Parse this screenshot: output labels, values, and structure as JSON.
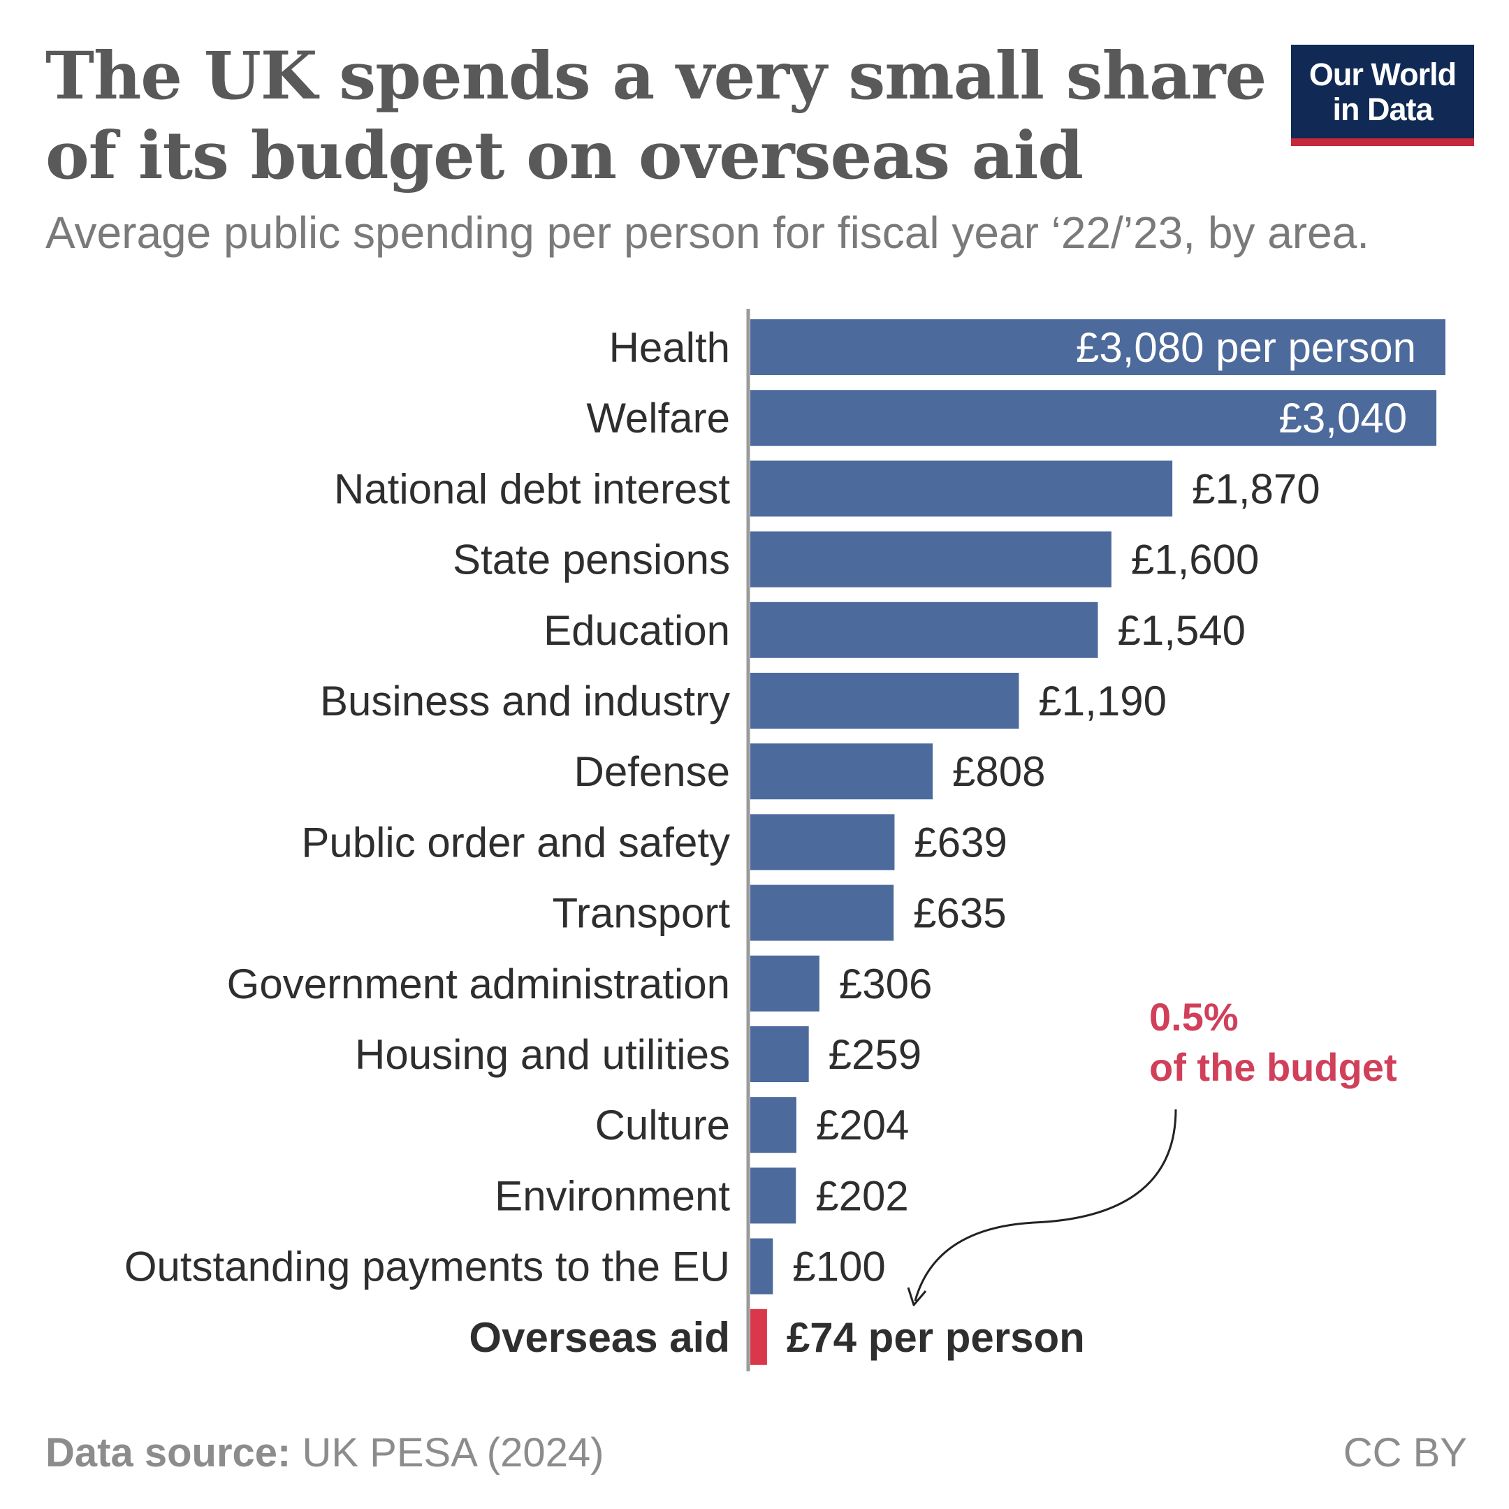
{
  "header": {
    "title_line1": "The UK spends a very small share",
    "title_line2": "of its budget on overseas aid",
    "subtitle": "Average public spending per person for fiscal year ‘22/’23, by area."
  },
  "logo": {
    "line1": "Our World",
    "line2": "in Data",
    "background_color": "#102a55",
    "accent_color": "#c4283a"
  },
  "annotation": {
    "line1": "0.5%",
    "line2": "of the budget",
    "color": "#d0405a"
  },
  "footer": {
    "source_label": "Data source:",
    "source_value": "UK PESA (2024)",
    "license": "CC BY"
  },
  "chart_data": {
    "type": "bar",
    "orientation": "horizontal",
    "title": "The UK spends a very small share of its budget on overseas aid",
    "subtitle": "Average public spending per person for fiscal year ‘22/’23, by area.",
    "xlabel": "",
    "ylabel": "",
    "xlim": [
      0,
      3080
    ],
    "unit": "£ per person",
    "grid": false,
    "bar_color": "#4c6a9c",
    "highlight_color": "#d8384a",
    "categories": [
      "Health",
      "Welfare",
      "National debt interest",
      "State pensions",
      "Education",
      "Business and industry",
      "Defense",
      "Public order and safety",
      "Transport",
      "Government administration",
      "Housing and utilities",
      "Culture",
      "Environment",
      "Outstanding payments to the EU",
      "Overseas aid"
    ],
    "values": [
      3080,
      3040,
      1870,
      1600,
      1540,
      1190,
      808,
      639,
      635,
      306,
      259,
      204,
      202,
      100,
      74
    ],
    "labels": [
      "£3,080 per person",
      "£3,040",
      "£1,870",
      "£1,600",
      "£1,540",
      "£1,190",
      "£808",
      "£639",
      "£635",
      "£306",
      "£259",
      "£204",
      "£202",
      "£100",
      "£74 per person"
    ],
    "highlight": "Overseas aid"
  }
}
